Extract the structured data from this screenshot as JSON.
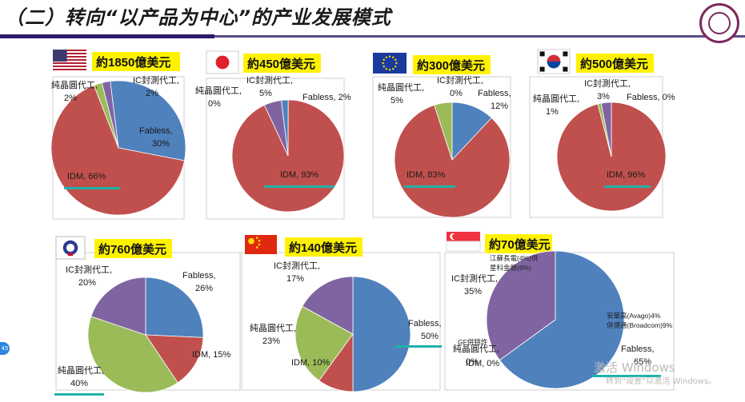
{
  "header": {
    "title": "（二）转向“以产品为中心”的产业发展模式"
  },
  "colors": {
    "fabless": "#4f81bd",
    "idm": "#c0504d",
    "foundry": "#9bbb59",
    "ic": "#8064a2",
    "underline": "#20b2aa"
  },
  "watermark": {
    "line1": "激活 Windows",
    "line2": "转到“设置”以激活 Windows。"
  },
  "page_badge": "45",
  "chart_data": [
    {
      "type": "pie",
      "region": "美国",
      "flag": "usa-flag-icon",
      "title": "約1850億美元",
      "slices": [
        {
          "label": "Fabless,",
          "pct": "30%",
          "value": 30
        },
        {
          "label": "IDM, 66%",
          "pct": "",
          "value": 66
        },
        {
          "label": "純晶圓代工,",
          "pct": "2%",
          "value": 2
        },
        {
          "label": "IC封測代工,",
          "pct": "2%",
          "value": 2
        }
      ]
    },
    {
      "type": "pie",
      "region": "日本",
      "flag": "japan-flag-icon",
      "title": "約450億美元",
      "slices": [
        {
          "label": "Fabless, 2%",
          "pct": "",
          "value": 2
        },
        {
          "label": "IDM, 93%",
          "pct": "",
          "value": 93
        },
        {
          "label": "純晶圓代工,",
          "pct": "0%",
          "value": 0
        },
        {
          "label": "IC封測代工,",
          "pct": "5%",
          "value": 5
        }
      ]
    },
    {
      "type": "pie",
      "region": "欧洲",
      "flag": "eu-flag-icon",
      "title": "約300億美元",
      "slices": [
        {
          "label": "Fabless,",
          "pct": "12%",
          "value": 12
        },
        {
          "label": "IDM, 83%",
          "pct": "",
          "value": 83
        },
        {
          "label": "純晶圓代工,",
          "pct": "5%",
          "value": 5
        },
        {
          "label": "IC封測代工,",
          "pct": "0%",
          "value": 0
        }
      ]
    },
    {
      "type": "pie",
      "region": "韩国",
      "flag": "korea-flag-icon",
      "title": "約500億美元",
      "slices": [
        {
          "label": "Fabless, 0%",
          "pct": "",
          "value": 0
        },
        {
          "label": "IDM, 96%",
          "pct": "",
          "value": 96
        },
        {
          "label": "純晶圓代工,",
          "pct": "1%",
          "value": 1
        },
        {
          "label": "IC封測代工,",
          "pct": "3%",
          "value": 3
        }
      ]
    },
    {
      "type": "pie",
      "region": "台湾",
      "flag": "taiwan-flag-icon",
      "title": "約760億美元",
      "slices": [
        {
          "label": "Fabless,",
          "pct": "26%",
          "value": 26
        },
        {
          "label": "IDM, 15%",
          "pct": "",
          "value": 15
        },
        {
          "label": "純晶圓代工,",
          "pct": "40%",
          "value": 40
        },
        {
          "label": "IC封測代工,",
          "pct": "20%",
          "value": 20
        }
      ]
    },
    {
      "type": "pie",
      "region": "中国",
      "flag": "china-flag-icon",
      "title": "約140億美元",
      "slices": [
        {
          "label": "Fabless,",
          "pct": "50%",
          "value": 50
        },
        {
          "label": "IDM, 10%",
          "pct": "",
          "value": 10
        },
        {
          "label": "純晶圓代工,",
          "pct": "23%",
          "value": 23
        },
        {
          "label": "IC封測代工,",
          "pct": "17%",
          "value": 17
        }
      ]
    },
    {
      "type": "pie",
      "region": "新加坡",
      "flag": "singapore-flag-icon",
      "title": "約70億美元",
      "slices": [
        {
          "label": "Fabless,",
          "pct": "65%",
          "value": 65
        },
        {
          "label": "IDM, 0%",
          "pct": "",
          "value": 0
        },
        {
          "label": "純晶圓代工,",
          "pct": "0%",
          "value": 0
        },
        {
          "label": "IC封測代工,",
          "pct": "35%",
          "value": 35
        }
      ],
      "annotations": [
        "江蘇長電(4%)併",
        "星科金朋(6%)",
        "安華高(Avago)4%",
        "併博通(Broadcom)9%",
        "GF併特許"
      ]
    }
  ]
}
